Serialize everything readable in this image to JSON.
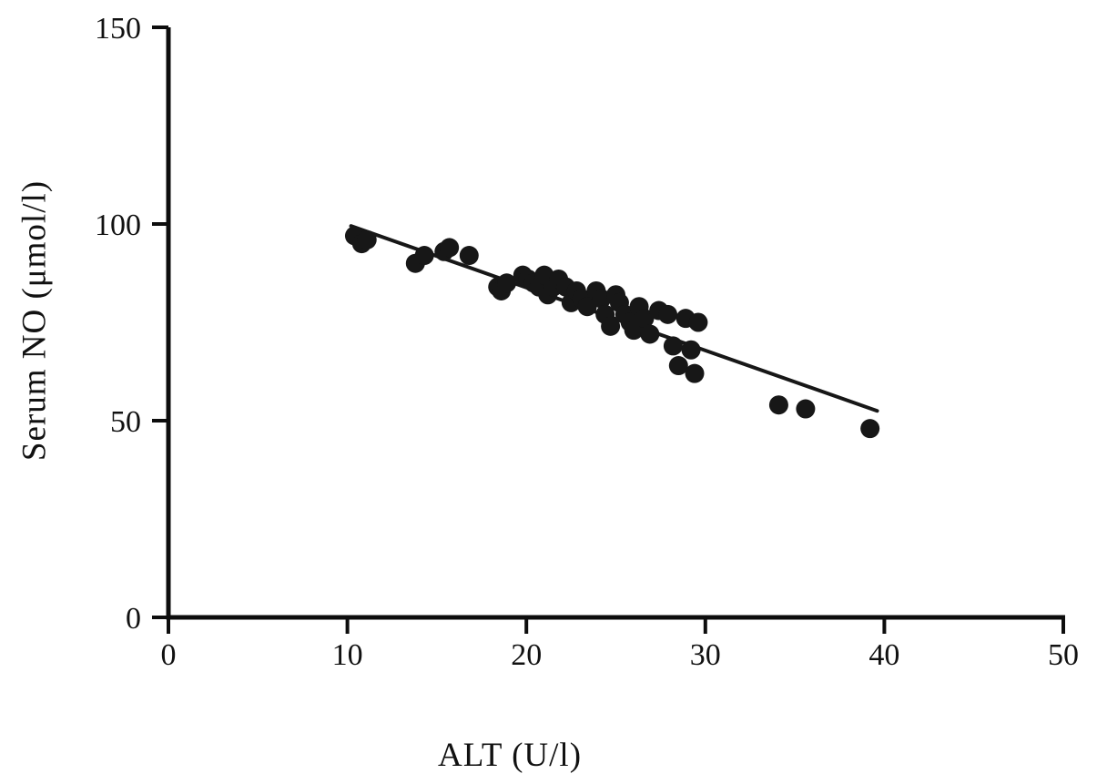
{
  "chart_data": {
    "type": "scatter",
    "title": "",
    "xlabel": "ALT (U/l)",
    "ylabel": "Serum NO (μmol/l)",
    "xlim": [
      0,
      50
    ],
    "ylim": [
      0,
      150
    ],
    "x_ticks": [
      0,
      10,
      20,
      30,
      40,
      50
    ],
    "y_ticks": [
      0,
      50,
      100,
      150
    ],
    "grid": false,
    "legend": "none",
    "axis_color": "#0d0d0d",
    "tick_label_color": "#111111",
    "marker": {
      "shape": "circle",
      "radius": 10.5,
      "color": "#171717"
    },
    "trendline": {
      "x1": 10.2,
      "y1": 99.5,
      "x2": 39.6,
      "y2": 52.5,
      "color": "#171717",
      "width": 4
    },
    "points": [
      [
        10.4,
        97
      ],
      [
        10.8,
        95
      ],
      [
        11.1,
        96
      ],
      [
        13.8,
        90
      ],
      [
        14.3,
        92
      ],
      [
        15.4,
        93
      ],
      [
        15.7,
        94
      ],
      [
        16.8,
        92
      ],
      [
        18.4,
        84
      ],
      [
        18.6,
        83
      ],
      [
        18.9,
        85
      ],
      [
        19.8,
        87
      ],
      [
        20.1,
        86
      ],
      [
        20.4,
        85
      ],
      [
        20.7,
        84
      ],
      [
        21.0,
        87
      ],
      [
        21.2,
        82
      ],
      [
        21.5,
        84
      ],
      [
        21.8,
        86
      ],
      [
        22.2,
        84
      ],
      [
        22.5,
        80
      ],
      [
        22.8,
        83
      ],
      [
        23.1,
        81
      ],
      [
        23.4,
        79
      ],
      [
        23.9,
        83
      ],
      [
        24.2,
        81
      ],
      [
        24.4,
        77
      ],
      [
        24.7,
        74
      ],
      [
        25.0,
        82
      ],
      [
        25.2,
        80
      ],
      [
        25.5,
        77
      ],
      [
        25.8,
        75
      ],
      [
        26.0,
        73
      ],
      [
        26.3,
        79
      ],
      [
        26.6,
        76
      ],
      [
        26.9,
        72
      ],
      [
        27.4,
        78
      ],
      [
        27.9,
        77
      ],
      [
        28.2,
        69
      ],
      [
        28.5,
        64
      ],
      [
        28.9,
        76
      ],
      [
        29.2,
        68
      ],
      [
        29.4,
        62
      ],
      [
        29.6,
        75
      ],
      [
        34.1,
        54
      ],
      [
        35.6,
        53
      ],
      [
        39.2,
        48
      ]
    ]
  }
}
